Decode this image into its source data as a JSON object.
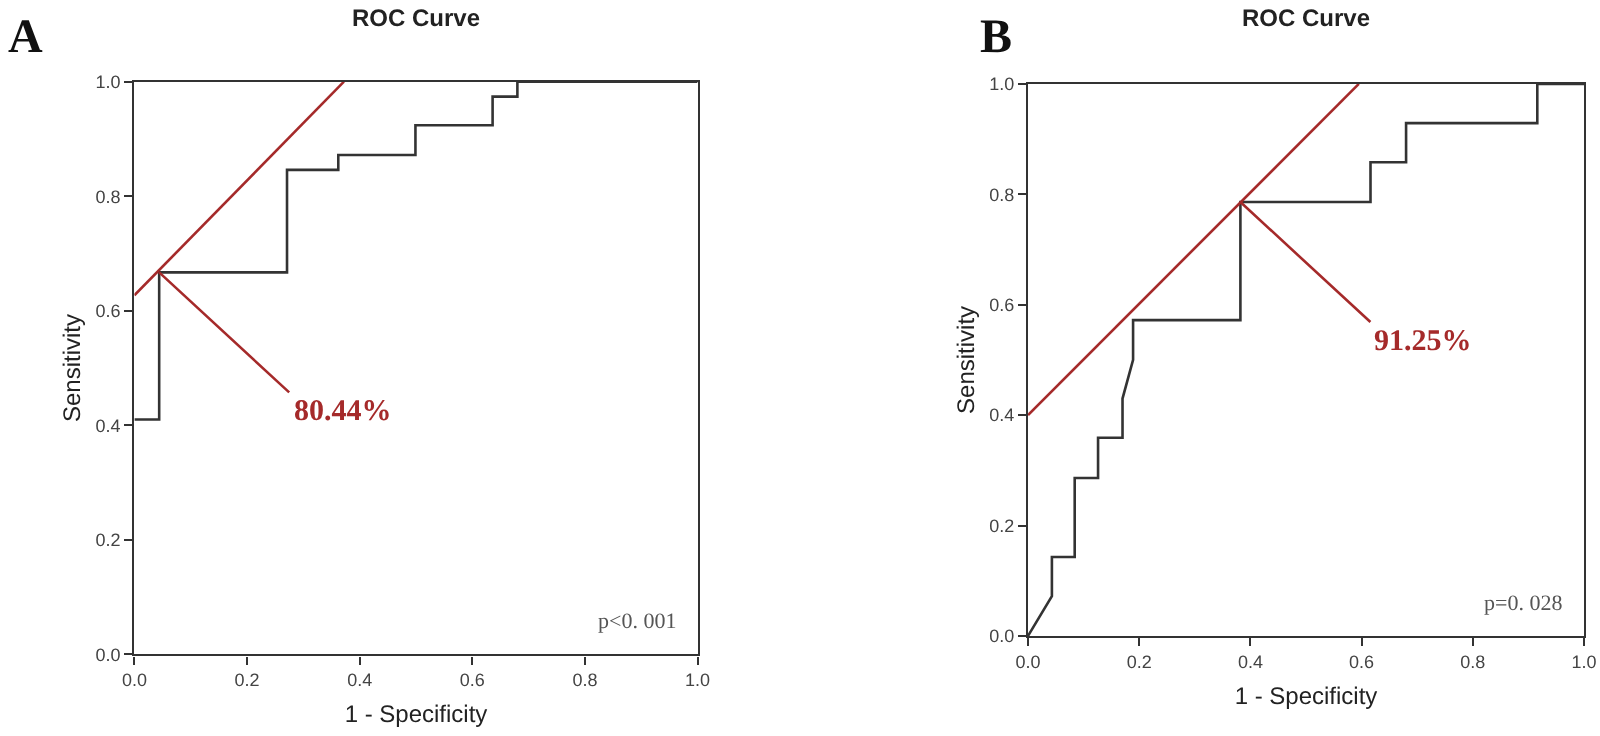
{
  "chart_data": [
    {
      "type": "line",
      "title": "ROC Curve",
      "xlabel": "1 - Specificity",
      "ylabel": "Sensitivity",
      "series": [
        {
          "color": "#333333",
          "x": [
            0,
            0.044,
            0.044,
            0.271,
            0.271,
            0.362,
            0.362,
            0.499,
            0.499,
            0.636,
            0.636,
            0.68,
            0.68,
            1.0
          ],
          "values": [
            0.41,
            0.41,
            0.667,
            0.667,
            0.846,
            0.846,
            0.872,
            0.872,
            0.924,
            0.924,
            0.974,
            0.974,
            1.0,
            1.0
          ]
        },
        {
          "color": "#a52a2a",
          "x": [
            0,
            0.372
          ],
          "values": [
            0.627,
            1.0
          ]
        }
      ],
      "annotations": [
        "A",
        {
          "text": "80.44%",
          "x": 0.044,
          "y": 0.667
        },
        "p<0. 001"
      ],
      "xlim": [
        0,
        1
      ],
      "ylim": [
        0,
        1
      ],
      "xticks": [
        {
          "value": 0,
          "label": "0.0"
        },
        {
          "value": 0.2,
          "label": "0.2"
        },
        {
          "value": 0.4,
          "label": "0.4"
        },
        {
          "value": 0.6,
          "label": "0.6"
        },
        {
          "value": 0.8,
          "label": "0.8"
        },
        {
          "value": 1,
          "label": "1.0"
        }
      ],
      "yticks": [
        {
          "value": 0,
          "label": "0.0"
        },
        {
          "value": 0.2,
          "label": "0.2"
        },
        {
          "value": 0.4,
          "label": "0.4"
        },
        {
          "value": 0.6,
          "label": "0.6"
        },
        {
          "value": 0.8,
          "label": "0.8"
        },
        {
          "value": 1,
          "label": "1.0"
        }
      ],
      "marker": "none",
      "line_style": "solid"
    },
    {
      "type": "line",
      "title": "ROC Curve",
      "xlabel": "1 - Specificity",
      "ylabel": "Sensitivity",
      "series": [
        {
          "color": "#333333",
          "x": [
            0,
            0.043,
            0.043,
            0.084,
            0.084,
            0.126,
            0.126,
            0.17,
            0.17,
            0.189,
            0.189,
            0.382,
            0.382,
            0.616,
            0.616,
            0.68,
            0.68,
            0.916,
            0.916,
            1.0
          ],
          "values": [
            0,
            0.072,
            0.143,
            0.143,
            0.286,
            0.286,
            0.359,
            0.359,
            0.43,
            0.5,
            0.572,
            0.572,
            0.786,
            0.786,
            0.858,
            0.858,
            0.929,
            0.929,
            1.0,
            1.0
          ]
        },
        {
          "color": "#a52a2a",
          "x": [
            0,
            0.595
          ],
          "values": [
            0.4,
            1.0
          ]
        }
      ],
      "annotations": [
        "B",
        {
          "text": "91.25%",
          "x": 0.382,
          "y": 0.786
        },
        "p=0. 028"
      ],
      "xlim": [
        0,
        1
      ],
      "ylim": [
        0,
        1
      ],
      "xticks": [
        {
          "value": 0,
          "label": "0.0"
        },
        {
          "value": 0.2,
          "label": "0.2"
        },
        {
          "value": 0.4,
          "label": "0.4"
        },
        {
          "value": 0.6,
          "label": "0.6"
        },
        {
          "value": 0.8,
          "label": "0.8"
        },
        {
          "value": 1,
          "label": "1.0"
        }
      ],
      "yticks": [
        {
          "value": 0,
          "label": "0.0"
        },
        {
          "value": 0.2,
          "label": "0.2"
        },
        {
          "value": 0.4,
          "label": "0.4"
        },
        {
          "value": 0.6,
          "label": "0.6"
        },
        {
          "value": 0.8,
          "label": "0.8"
        },
        {
          "value": 1,
          "label": "1.0"
        }
      ],
      "marker": "none",
      "line_style": "solid"
    }
  ]
}
